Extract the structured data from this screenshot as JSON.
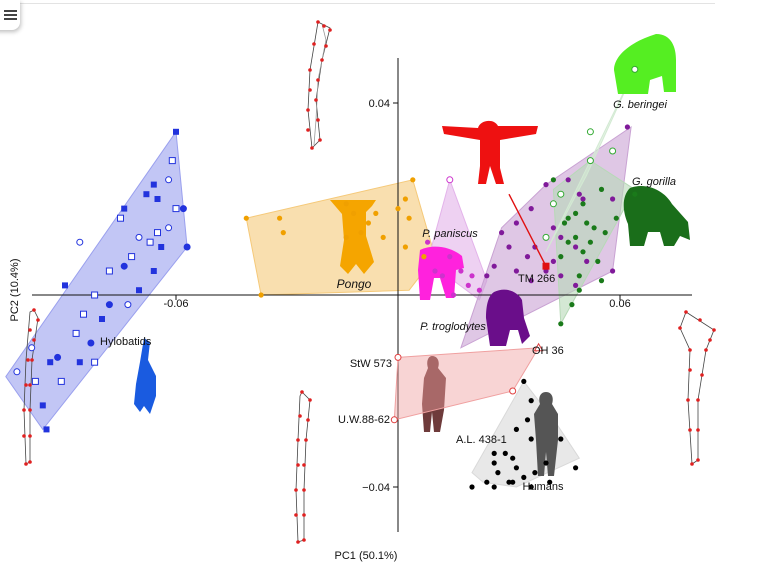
{
  "menu": {
    "icon": "hamburger-menu-icon"
  },
  "chart_data": {
    "type": "scatter",
    "xlabel": "PC1 (50.1%)",
    "ylabel": "PC2 (10.4%)",
    "xlim": [
      -0.115,
      0.085
    ],
    "ylim": [
      -0.05,
      0.055
    ],
    "x_ticks": [
      {
        "value": -0.06,
        "label": "-0.06"
      },
      {
        "value": 0.06,
        "label": "0.06"
      }
    ],
    "y_ticks": [
      {
        "value": 0.04,
        "label": "0.04"
      },
      {
        "value": -0.04,
        "label": "−0.04"
      }
    ],
    "groups": [
      {
        "name": "Hylobatids",
        "color": "#2233dd",
        "fill": "#9aa0ee",
        "hull": [
          [
            -0.06,
            0.034
          ],
          [
            -0.057,
            0.01
          ],
          [
            -0.096,
            -0.028
          ],
          [
            -0.106,
            -0.017
          ]
        ],
        "points": [
          [
            -0.06,
            0.034
          ],
          [
            -0.061,
            0.028
          ],
          [
            -0.062,
            0.024
          ],
          [
            -0.066,
            0.023
          ],
          [
            -0.06,
            0.018
          ],
          [
            -0.058,
            0.018
          ],
          [
            -0.068,
            0.021
          ],
          [
            -0.065,
            0.013
          ],
          [
            -0.062,
            0.014
          ],
          [
            -0.074,
            0.018
          ],
          [
            -0.075,
            0.016
          ],
          [
            -0.057,
            0.01
          ],
          [
            -0.065,
            0.02
          ],
          [
            -0.067,
            0.011
          ],
          [
            -0.07,
            0.012
          ],
          [
            -0.064,
            0.01
          ],
          [
            -0.072,
            0.008
          ],
          [
            -0.074,
            0.006
          ],
          [
            -0.066,
            0.005
          ],
          [
            -0.078,
            0.005
          ],
          [
            -0.086,
            0.011
          ],
          [
            -0.09,
            0.002
          ],
          [
            -0.082,
            0.0
          ],
          [
            -0.078,
            -0.002
          ],
          [
            -0.08,
            -0.005
          ],
          [
            -0.085,
            -0.004
          ],
          [
            -0.073,
            -0.002
          ],
          [
            -0.07,
            0.001
          ],
          [
            -0.087,
            -0.008
          ],
          [
            -0.092,
            -0.013
          ],
          [
            -0.094,
            -0.014
          ],
          [
            -0.091,
            -0.018
          ],
          [
            -0.099,
            -0.011
          ],
          [
            -0.086,
            -0.014
          ],
          [
            -0.082,
            -0.014
          ],
          [
            -0.083,
            -0.01
          ],
          [
            -0.096,
            -0.023
          ],
          [
            -0.098,
            -0.018
          ],
          [
            -0.103,
            -0.016
          ],
          [
            -0.095,
            -0.028
          ]
        ]
      },
      {
        "name": "Pongo",
        "color": "#f0a000",
        "fill": "#f5c979",
        "hull": [
          [
            -0.041,
            0.016
          ],
          [
            0.004,
            0.024
          ],
          [
            0.01,
            0.008
          ],
          [
            0.003,
            0.001
          ],
          [
            -0.037,
            0.0
          ]
        ],
        "points": [
          [
            0.004,
            0.024
          ],
          [
            0.002,
            0.02
          ],
          [
            0.0,
            0.018
          ],
          [
            0.003,
            0.016
          ],
          [
            -0.006,
            0.017
          ],
          [
            -0.012,
            0.017
          ],
          [
            -0.014,
            0.019
          ],
          [
            -0.008,
            0.015
          ],
          [
            -0.01,
            0.013
          ],
          [
            -0.014,
            0.012
          ],
          [
            -0.004,
            0.012
          ],
          [
            0.002,
            0.01
          ],
          [
            0.007,
            0.008
          ],
          [
            -0.041,
            0.016
          ],
          [
            -0.032,
            0.016
          ],
          [
            -0.031,
            0.013
          ],
          [
            -0.037,
            0.0
          ]
        ]
      },
      {
        "name": "P. paniscus",
        "color": "#cc33cc",
        "fill": "#e3b3ea",
        "hull": [
          [
            0.014,
            0.024
          ],
          [
            0.024,
            0.003
          ],
          [
            0.022,
            -0.001
          ],
          [
            0.008,
            0.007
          ]
        ],
        "points": [
          [
            0.014,
            0.024
          ],
          [
            0.008,
            0.011
          ],
          [
            0.01,
            0.005
          ],
          [
            0.014,
            0.008
          ],
          [
            0.017,
            0.005
          ],
          [
            0.02,
            0.004
          ],
          [
            0.022,
            0.001
          ],
          [
            0.019,
            0.002
          ],
          [
            0.012,
            0.004
          ],
          [
            0.015,
            0.0
          ]
        ]
      },
      {
        "name": "P. troglodytes",
        "color": "#801a9a",
        "fill": "#c9a2d3",
        "hull": [
          [
            0.017,
            -0.011
          ],
          [
            0.028,
            0.014
          ],
          [
            0.04,
            0.023
          ],
          [
            0.063,
            0.035
          ],
          [
            0.058,
            0.005
          ]
        ],
        "points": [
          [
            0.062,
            0.035
          ],
          [
            0.04,
            0.023
          ],
          [
            0.046,
            0.024
          ],
          [
            0.049,
            0.021
          ],
          [
            0.05,
            0.02
          ],
          [
            0.058,
            0.02
          ],
          [
            0.036,
            0.018
          ],
          [
            0.032,
            0.015
          ],
          [
            0.042,
            0.014
          ],
          [
            0.028,
            0.013
          ],
          [
            0.044,
            0.012
          ],
          [
            0.048,
            0.01
          ],
          [
            0.037,
            0.01
          ],
          [
            0.03,
            0.01
          ],
          [
            0.035,
            0.008
          ],
          [
            0.042,
            0.007
          ],
          [
            0.051,
            0.007
          ],
          [
            0.04,
            0.005
          ],
          [
            0.032,
            0.005
          ],
          [
            0.026,
            0.006
          ],
          [
            0.024,
            0.004
          ],
          [
            0.036,
            0.003
          ],
          [
            0.048,
            0.002
          ],
          [
            0.058,
            0.005
          ],
          [
            0.044,
            0.004
          ]
        ]
      },
      {
        "name": "G. gorilla",
        "color": "#1a7a1a",
        "fill": "#b7d9b7",
        "hull": [
          [
            0.042,
            0.022
          ],
          [
            0.052,
            0.028
          ],
          [
            0.064,
            0.022
          ],
          [
            0.044,
            -0.006
          ]
        ],
        "points": [
          [
            0.042,
            0.024
          ],
          [
            0.052,
            0.028
          ],
          [
            0.064,
            0.021
          ],
          [
            0.05,
            0.019
          ],
          [
            0.055,
            0.022
          ],
          [
            0.048,
            0.017
          ],
          [
            0.046,
            0.016
          ],
          [
            0.045,
            0.015
          ],
          [
            0.051,
            0.015
          ],
          [
            0.053,
            0.014
          ],
          [
            0.059,
            0.016
          ],
          [
            0.056,
            0.013
          ],
          [
            0.048,
            0.012
          ],
          [
            0.046,
            0.011
          ],
          [
            0.052,
            0.011
          ],
          [
            0.05,
            0.009
          ],
          [
            0.044,
            0.008
          ],
          [
            0.054,
            0.007
          ],
          [
            0.049,
            0.004
          ],
          [
            0.055,
            0.003
          ],
          [
            0.049,
            0.001
          ],
          [
            0.047,
            -0.002
          ],
          [
            0.044,
            -0.006
          ]
        ]
      },
      {
        "name": "G. beringei",
        "color": "#33aa33",
        "fill": "#d3ead3",
        "hull": [
          [
            0.064,
            0.047
          ],
          [
            0.052,
            0.028
          ],
          [
            0.04,
            0.009
          ],
          [
            0.051,
            0.025
          ]
        ],
        "points": [
          [
            0.064,
            0.047
          ],
          [
            0.052,
            0.034
          ],
          [
            0.058,
            0.03
          ],
          [
            0.052,
            0.028
          ],
          [
            0.044,
            0.021
          ],
          [
            0.042,
            0.019
          ],
          [
            0.04,
            0.012
          ]
        ]
      },
      {
        "name": "Humans",
        "color": "#000000",
        "fill": "#d9d9d9",
        "hull": [
          [
            0.034,
            -0.018
          ],
          [
            0.043,
            -0.027
          ],
          [
            0.049,
            -0.034
          ],
          [
            0.032,
            -0.04
          ],
          [
            0.023,
            -0.039
          ],
          [
            0.02,
            -0.037
          ]
        ],
        "points": [
          [
            0.034,
            -0.018
          ],
          [
            0.036,
            -0.022
          ],
          [
            0.035,
            -0.026
          ],
          [
            0.032,
            -0.028
          ],
          [
            0.036,
            -0.03
          ],
          [
            0.044,
            -0.03
          ],
          [
            0.029,
            -0.033
          ],
          [
            0.026,
            -0.033
          ],
          [
            0.031,
            -0.034
          ],
          [
            0.04,
            -0.035
          ],
          [
            0.026,
            -0.035
          ],
          [
            0.032,
            -0.036
          ],
          [
            0.048,
            -0.036
          ],
          [
            0.027,
            -0.037
          ],
          [
            0.034,
            -0.038
          ],
          [
            0.031,
            -0.039
          ],
          [
            0.037,
            -0.037
          ],
          [
            0.041,
            -0.039
          ],
          [
            0.024,
            -0.039
          ],
          [
            0.03,
            -0.039
          ],
          [
            0.026,
            -0.04
          ],
          [
            0.036,
            -0.04
          ],
          [
            0.02,
            -0.04
          ]
        ]
      }
    ],
    "fossils": [
      {
        "name": "StW 573",
        "color": "#e04040",
        "x": 0.0,
        "y": -0.013,
        "marker": "circle"
      },
      {
        "name": "U.W.88-62",
        "color": "#e04040",
        "x": -0.001,
        "y": -0.026,
        "marker": "circle"
      },
      {
        "name": "A.L. 438-1",
        "color": "#e04040",
        "x": 0.031,
        "y": -0.02,
        "marker": "circle"
      },
      {
        "name": "OH 36",
        "color": "#e04040",
        "x": 0.038,
        "y": -0.011,
        "marker": "triangle"
      },
      {
        "name": "TM 266",
        "color": "#e01010",
        "x": 0.04,
        "y": 0.006,
        "marker": "square"
      }
    ],
    "fossil_hull": {
      "color": "#f0a0a0",
      "points": [
        [
          0.0,
          -0.013
        ],
        [
          0.038,
          -0.011
        ],
        [
          0.031,
          -0.02
        ],
        [
          -0.001,
          -0.026
        ]
      ]
    },
    "tm266_line": [
      [
        0.03,
        0.021
      ],
      [
        0.04,
        0.006
      ]
    ]
  }
}
